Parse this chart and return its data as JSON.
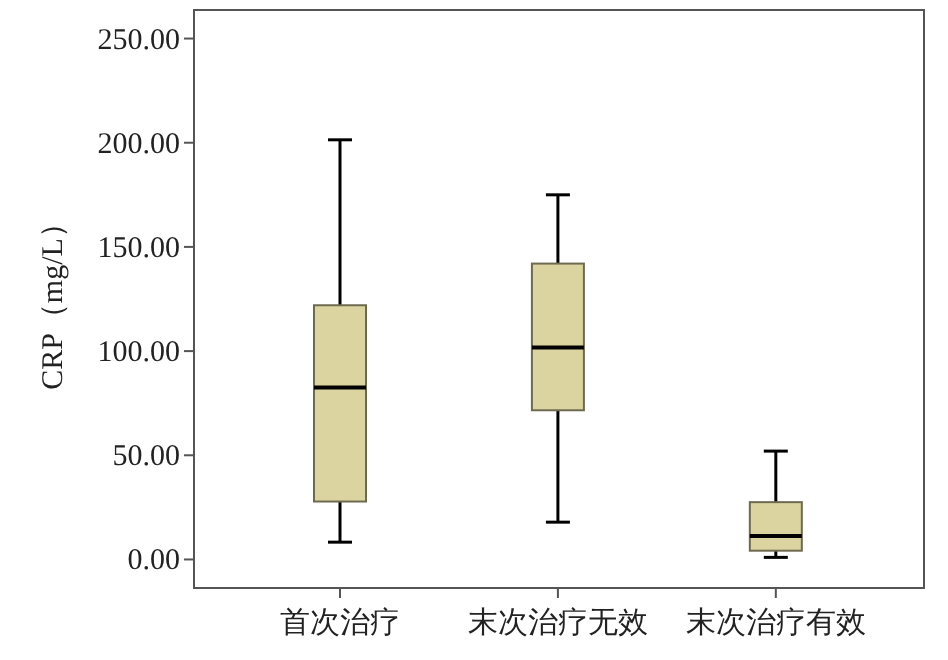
{
  "chart_data": {
    "type": "box",
    "ylabel": "CRP（mg/L）",
    "categories": [
      "首次治疗",
      "末次治疗无效",
      "末次治疗有效"
    ],
    "color": "#dbd4a0",
    "boxes": [
      {
        "low": 8.3,
        "q1": 27.8,
        "median": 82.5,
        "q3": 122,
        "high": 201.4
      },
      {
        "low": 17.9,
        "q1": 71.6,
        "median": 101.7,
        "q3": 142,
        "high": 175
      },
      {
        "low": 1,
        "q1": 4.2,
        "median": 11.2,
        "q3": 27.5,
        "high": 52
      }
    ],
    "ylim": [
      -13.7,
      263.7
    ],
    "yticks": [
      {
        "value": 0,
        "label": "0.00"
      },
      {
        "value": 50,
        "label": "50.00"
      },
      {
        "value": 100,
        "label": "100.00"
      },
      {
        "value": 150,
        "label": "150.00"
      },
      {
        "value": 200,
        "label": "200.00"
      },
      {
        "value": 250,
        "label": "250.00"
      }
    ],
    "grid": false
  }
}
